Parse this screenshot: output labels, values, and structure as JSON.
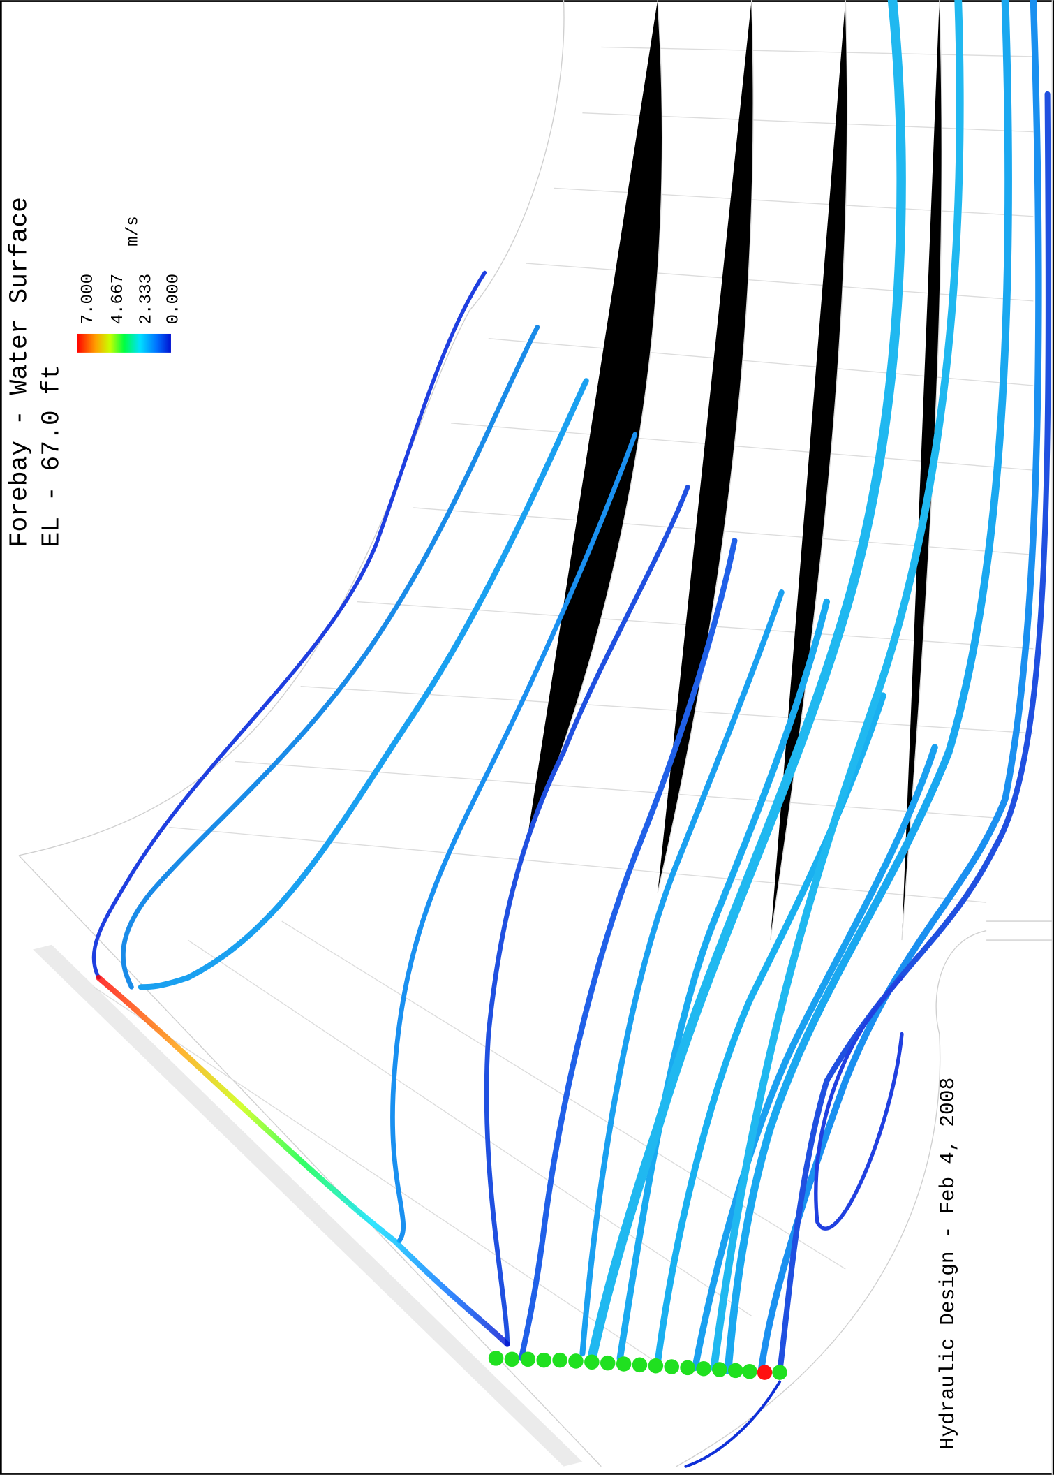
{
  "title": {
    "line1": "Forebay - Water Surface",
    "line2": "EL - 67.0 ft"
  },
  "legend": {
    "labels": [
      "7.000",
      "4.667",
      "2.333",
      "0.000"
    ],
    "unit": "m/s"
  },
  "footer": "Hydraulic Design - Feb 4, 2008"
}
